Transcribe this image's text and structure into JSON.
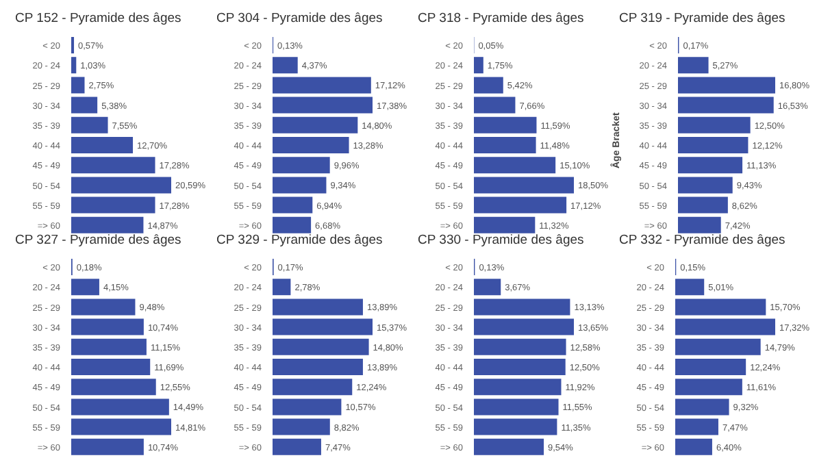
{
  "chart_data": [
    {
      "type": "bar",
      "orientation": "horizontal",
      "title": "CP 152 - Pyramide des âges",
      "categories": [
        "< 20",
        "20 - 24",
        "25 - 29",
        "30 - 34",
        "35 - 39",
        "40 - 44",
        "45 - 49",
        "50 - 54",
        "55 - 59",
        "=> 60"
      ],
      "values": [
        0.57,
        1.03,
        2.75,
        5.38,
        7.55,
        12.7,
        17.28,
        20.59,
        17.28,
        14.87
      ],
      "value_labels": [
        "0,57%",
        "1,03%",
        "2,75%",
        "5,38%",
        "7,55%",
        "12,70%",
        "17,28%",
        "20,59%",
        "17,28%",
        "14,87%"
      ],
      "color": "#3b51a6",
      "tick_labels": "y",
      "grid": false,
      "legend": false
    },
    {
      "type": "bar",
      "orientation": "horizontal",
      "title": "CP 304 - Pyramide des âges",
      "categories": [
        "< 20",
        "20 - 24",
        "25 - 29",
        "30 - 34",
        "35 - 39",
        "40 - 44",
        "45 - 49",
        "50 - 54",
        "55 - 59",
        "=> 60"
      ],
      "values": [
        0.13,
        4.37,
        17.12,
        17.38,
        14.8,
        13.28,
        9.96,
        9.34,
        6.94,
        6.68
      ],
      "value_labels": [
        "0,13%",
        "4,37%",
        "17,12%",
        "17,38%",
        "14,80%",
        "13,28%",
        "9,96%",
        "9,34%",
        "6,94%",
        "6,68%"
      ],
      "color": "#3b51a6",
      "tick_labels": "y",
      "grid": false,
      "legend": false
    },
    {
      "type": "bar",
      "orientation": "horizontal",
      "title": "CP 318 - Pyramide des âges",
      "categories": [
        "< 20",
        "20 - 24",
        "25 - 29",
        "30 - 34",
        "35 - 39",
        "40 - 44",
        "45 - 49",
        "50 - 54",
        "55 - 59",
        "=> 60"
      ],
      "values": [
        0.05,
        1.75,
        5.42,
        7.66,
        11.59,
        11.48,
        15.1,
        18.5,
        17.12,
        11.32
      ],
      "value_labels": [
        "0,05%",
        "1,75%",
        "5,42%",
        "7,66%",
        "11,59%",
        "11,48%",
        "15,10%",
        "18,50%",
        "17,12%",
        "11,32%"
      ],
      "color": "#3b51a6",
      "tick_labels": "y",
      "grid": false,
      "legend": false
    },
    {
      "type": "bar",
      "orientation": "horizontal",
      "title": "CP 319 - Pyramide des âges",
      "ylabel": "Âge Bracket",
      "categories": [
        "< 20",
        "20 - 24",
        "25 - 29",
        "30 - 34",
        "35 - 39",
        "40 - 44",
        "45 - 49",
        "50 - 54",
        "55 - 59",
        "=> 60"
      ],
      "values": [
        0.17,
        5.27,
        16.8,
        16.53,
        12.5,
        12.12,
        11.13,
        9.43,
        8.62,
        7.42
      ],
      "value_labels": [
        "0,17%",
        "5,27%",
        "16,80%",
        "16,53%",
        "12,50%",
        "12,12%",
        "11,13%",
        "9,43%",
        "8,62%",
        "7,42%"
      ],
      "color": "#3b51a6",
      "tick_labels": "y",
      "grid": false,
      "legend": false
    },
    {
      "type": "bar",
      "orientation": "horizontal",
      "title": "CP 327 - Pyramide des âges",
      "categories": [
        "< 20",
        "20 - 24",
        "25 - 29",
        "30 - 34",
        "35 - 39",
        "40 - 44",
        "45 - 49",
        "50 - 54",
        "55 - 59",
        "=> 60"
      ],
      "values": [
        0.18,
        4.15,
        9.48,
        10.74,
        11.15,
        11.69,
        12.55,
        14.49,
        14.81,
        10.74
      ],
      "value_labels": [
        "0,18%",
        "4,15%",
        "9,48%",
        "10,74%",
        "11,15%",
        "11,69%",
        "12,55%",
        "14,49%",
        "14,81%",
        "10,74%"
      ],
      "color": "#3b51a6",
      "tick_labels": "y",
      "grid": false,
      "legend": false
    },
    {
      "type": "bar",
      "orientation": "horizontal",
      "title": "CP 329 - Pyramide des âges",
      "categories": [
        "< 20",
        "20 - 24",
        "25 - 29",
        "30 - 34",
        "35 - 39",
        "40 - 44",
        "45 - 49",
        "50 - 54",
        "55 - 59",
        "=> 60"
      ],
      "values": [
        0.17,
        2.78,
        13.89,
        15.37,
        14.8,
        13.89,
        12.24,
        10.57,
        8.82,
        7.47
      ],
      "value_labels": [
        "0,17%",
        "2,78%",
        "13,89%",
        "15,37%",
        "14,80%",
        "13,89%",
        "12,24%",
        "10,57%",
        "8,82%",
        "7,47%"
      ],
      "color": "#3b51a6",
      "tick_labels": "y",
      "grid": false,
      "legend": false
    },
    {
      "type": "bar",
      "orientation": "horizontal",
      "title": "CP 330 - Pyramide des âges",
      "categories": [
        "< 20",
        "20 - 24",
        "25 - 29",
        "30 - 34",
        "35 - 39",
        "40 - 44",
        "45 - 49",
        "50 - 54",
        "55 - 59",
        "=> 60"
      ],
      "values": [
        0.13,
        3.67,
        13.13,
        13.65,
        12.58,
        12.5,
        11.92,
        11.55,
        11.35,
        9.54
      ],
      "value_labels": [
        "0,13%",
        "3,67%",
        "13,13%",
        "13,65%",
        "12,58%",
        "12,50%",
        "11,92%",
        "11,55%",
        "11,35%",
        "9,54%"
      ],
      "color": "#3b51a6",
      "tick_labels": "y",
      "grid": false,
      "legend": false
    },
    {
      "type": "bar",
      "orientation": "horizontal",
      "title": "CP 332 - Pyramide des âges",
      "categories": [
        "< 20",
        "20 - 24",
        "25 - 29",
        "30 - 34",
        "35 - 39",
        "40 - 44",
        "45 - 49",
        "50 - 54",
        "55 - 59",
        "=> 60"
      ],
      "values": [
        0.15,
        5.01,
        15.7,
        17.32,
        14.79,
        12.24,
        11.61,
        9.32,
        7.47,
        6.4
      ],
      "value_labels": [
        "0,15%",
        "5,01%",
        "15,70%",
        "17,32%",
        "14,79%",
        "12,24%",
        "11,61%",
        "9,32%",
        "7,47%",
        "6,40%"
      ],
      "color": "#3b51a6",
      "tick_labels": "y",
      "grid": false,
      "legend": false
    }
  ]
}
